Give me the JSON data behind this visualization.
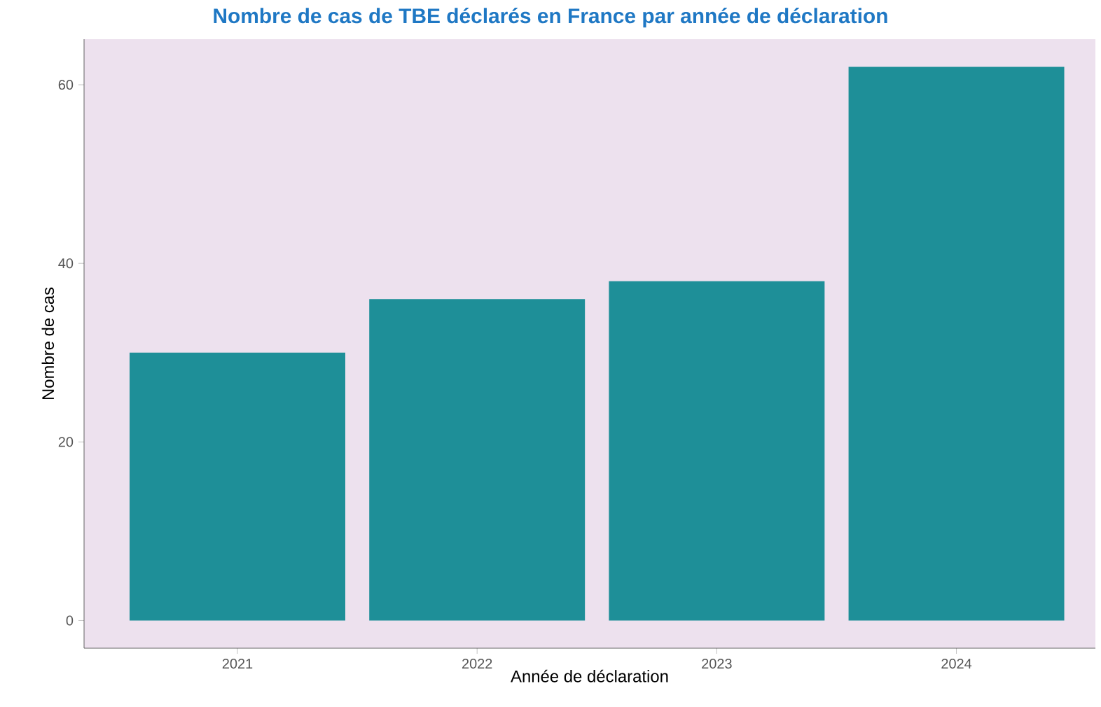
{
  "chart_data": {
    "type": "bar",
    "title": "Nombre de cas de TBE déclarés en France par année de déclaration",
    "xlabel": "Année de déclaration",
    "ylabel": "Nombre de cas",
    "categories": [
      "2021",
      "2022",
      "2023",
      "2024"
    ],
    "values": [
      30,
      36,
      38,
      62
    ],
    "color": "#1e8f98",
    "ylim": [
      -3.1,
      65.1
    ],
    "yticks": [
      0,
      20,
      40,
      60
    ]
  }
}
